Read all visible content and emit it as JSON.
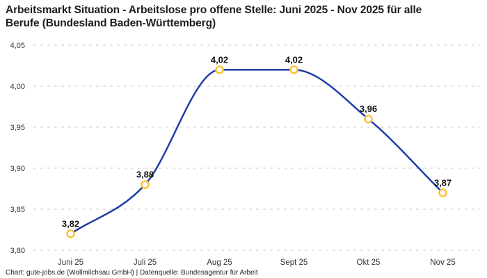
{
  "header": {
    "title_line1": "Arbeitsmarkt Situation - Arbeitslose pro offene Stelle: Juni 2025 - Nov 2025 für alle",
    "title_line2": "Berufe (Bundesland Baden-Württemberg)"
  },
  "footer": {
    "credit": "Chart: gute-jobs.de (Wollmilchsau GmbH) | Datenquelle: Bundesagentur für Arbeit"
  },
  "chart_data": {
    "type": "line",
    "title": "Arbeitsmarkt Situation - Arbeitslose pro offene Stelle: Juni 2025 - Nov 2025 für alle Berufe (Bundesland Baden-Württemberg)",
    "categories": [
      "Juni 25",
      "Juli 25",
      "Aug 25",
      "Sept 25",
      "Okt 25",
      "Nov 25"
    ],
    "values": [
      3.82,
      3.88,
      4.02,
      4.02,
      3.96,
      3.87
    ],
    "value_labels": [
      "3,82",
      "3,88",
      "4,02",
      "4,02",
      "3,96",
      "3,87"
    ],
    "y_ticks": [
      3.8,
      3.85,
      3.9,
      3.95,
      4.0,
      4.05
    ],
    "y_tick_labels": [
      "3,80",
      "3,85",
      "3,90",
      "3,95",
      "4,00",
      "4,05"
    ],
    "ylim": [
      3.8,
      4.05
    ],
    "xlabel": "",
    "ylabel": "",
    "grid": "horizontal-dashed",
    "legend": "none",
    "colors": {
      "line": "#1f3ca8",
      "marker_ring": "#fac33c",
      "marker_fill": "#ffffff",
      "grid": "#cbcbcb",
      "tick_text": "#333333",
      "value_label": "#111111",
      "background": "#ffffff"
    }
  }
}
